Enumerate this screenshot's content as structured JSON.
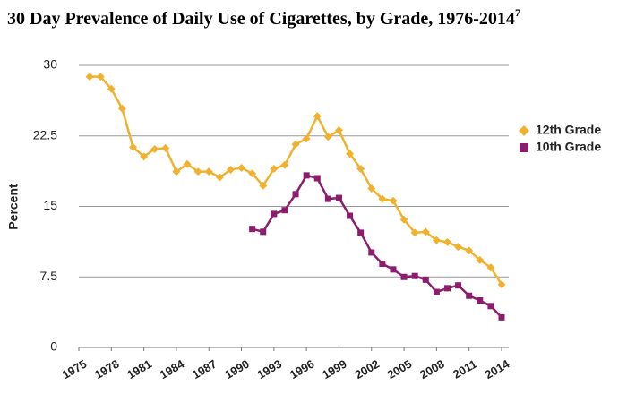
{
  "chart_data": {
    "type": "line",
    "title": "30 Day Prevalence of Daily Use of Cigarettes, by Grade, 1976-2014",
    "title_superscript": "7",
    "y_label": "Percent",
    "xlim": [
      1975,
      2014
    ],
    "xticks": [
      1975,
      1978,
      1981,
      1984,
      1987,
      1990,
      1993,
      1996,
      1999,
      2002,
      2005,
      2008,
      2011,
      2014
    ],
    "ylim": [
      0,
      30
    ],
    "yticks": [
      0,
      7.5,
      15,
      22.5,
      30
    ],
    "grid": true,
    "legend": "right",
    "series": [
      {
        "name": "12th Grade",
        "color": "#f0b22e",
        "marker": "diamond",
        "x": [
          1976,
          1977,
          1978,
          1979,
          1980,
          1981,
          1982,
          1983,
          1984,
          1985,
          1986,
          1987,
          1988,
          1989,
          1990,
          1991,
          1992,
          1993,
          1994,
          1995,
          1996,
          1997,
          1998,
          1999,
          2000,
          2001,
          2002,
          2003,
          2004,
          2005,
          2006,
          2007,
          2008,
          2009,
          2010,
          2011,
          2012,
          2013,
          2014
        ],
        "values": [
          28.8,
          28.8,
          27.5,
          25.4,
          21.3,
          20.3,
          21.1,
          21.2,
          18.7,
          19.5,
          18.7,
          18.7,
          18.1,
          18.9,
          19.1,
          18.5,
          17.2,
          19.0,
          19.4,
          21.6,
          22.2,
          24.6,
          22.4,
          23.1,
          20.6,
          19.0,
          16.9,
          15.8,
          15.6,
          13.6,
          12.2,
          12.3,
          11.4,
          11.2,
          10.7,
          10.3,
          9.3,
          8.5,
          6.7
        ]
      },
      {
        "name": "10th Grade",
        "color": "#8c1c6e",
        "marker": "square",
        "x": [
          1991,
          1992,
          1993,
          1994,
          1995,
          1996,
          1997,
          1998,
          1999,
          2000,
          2001,
          2002,
          2003,
          2004,
          2005,
          2006,
          2007,
          2008,
          2009,
          2010,
          2011,
          2012,
          2013,
          2014
        ],
        "values": [
          12.6,
          12.3,
          14.2,
          14.6,
          16.3,
          18.3,
          18.0,
          15.8,
          15.9,
          14.0,
          12.2,
          10.1,
          8.9,
          8.3,
          7.5,
          7.6,
          7.2,
          5.9,
          6.3,
          6.6,
          5.5,
          5.0,
          4.4,
          3.2
        ]
      }
    ]
  }
}
